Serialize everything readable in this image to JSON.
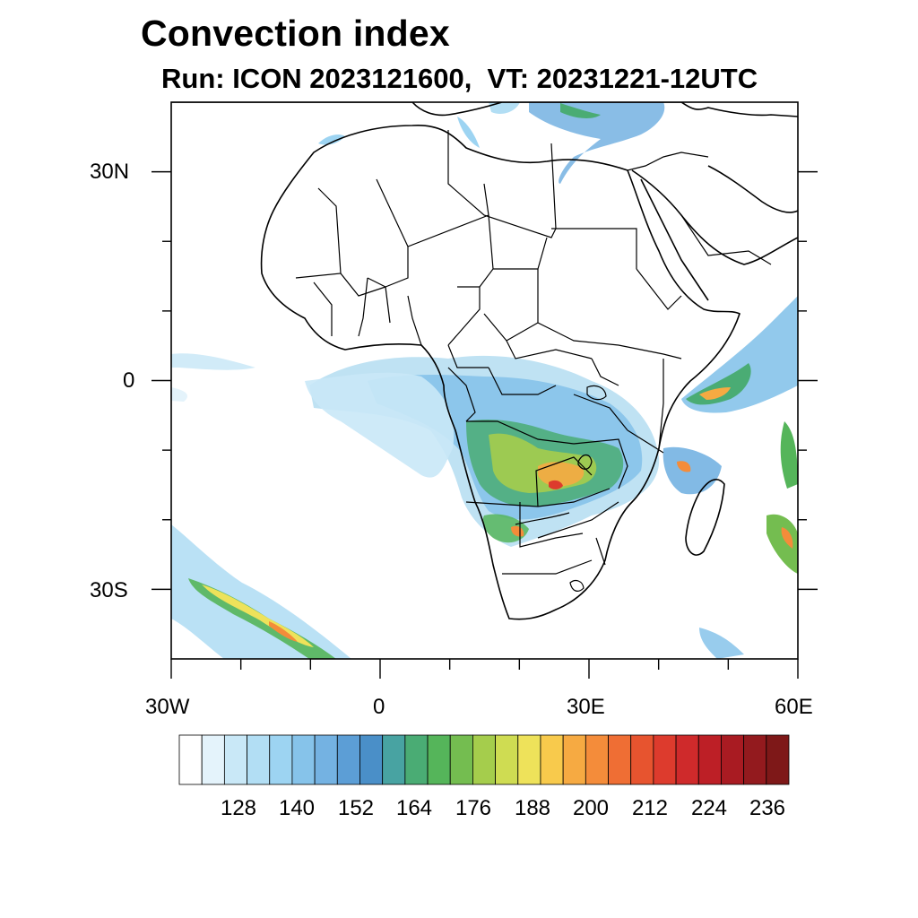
{
  "title": "Convection index",
  "subtitle": "Run: ICON 2023121600,  VT: 20231221-12UTC",
  "axes": {
    "lat_labels": [
      "30N",
      "0",
      "30S"
    ],
    "lon_labels": [
      "30W",
      "0",
      "30E",
      "60E"
    ],
    "lon_range": [
      -30,
      60
    ],
    "lat_range": [
      -40,
      40
    ]
  },
  "colorbar": {
    "labels": [
      "128",
      "140",
      "152",
      "164",
      "176",
      "188",
      "200",
      "212",
      "224",
      "236"
    ],
    "colors": [
      "#ffffff",
      "#e4f3fb",
      "#c9e8f7",
      "#b2def4",
      "#9dd4f2",
      "#86c3ea",
      "#74b2e2",
      "#5c9ed6",
      "#4a8fc8",
      "#48a3a2",
      "#4aac74",
      "#55b55a",
      "#74bd50",
      "#a5cd4c",
      "#cfdc52",
      "#eee25a",
      "#f8ca4c",
      "#f6aa42",
      "#f48c3a",
      "#ef6e34",
      "#e7542f",
      "#dd3b2d",
      "#cf2a2b",
      "#bd1f26",
      "#a91b22",
      "#931a1e",
      "#7e1818"
    ]
  }
}
